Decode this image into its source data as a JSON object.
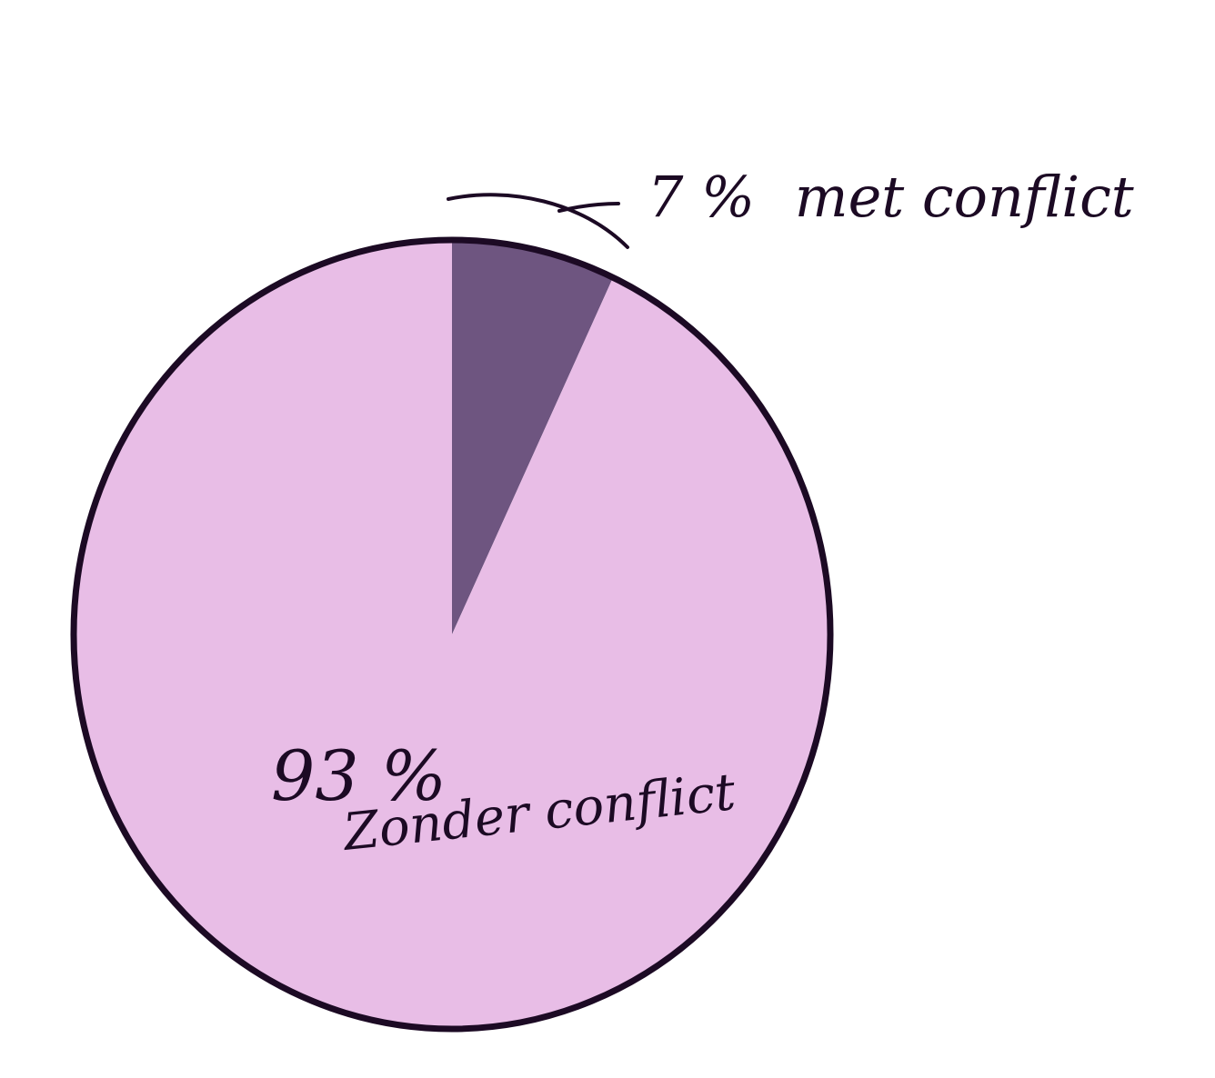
{
  "chart_data": {
    "type": "pie",
    "title": "",
    "slices": [
      {
        "percent_label": "7 %",
        "label": "met conflict",
        "value": 7,
        "color": "#6e5580"
      },
      {
        "percent_label": "93 %",
        "label": "Zonder conflict",
        "value": 93,
        "color": "#e8bde6"
      }
    ],
    "outline_color": "#1c0a24"
  }
}
